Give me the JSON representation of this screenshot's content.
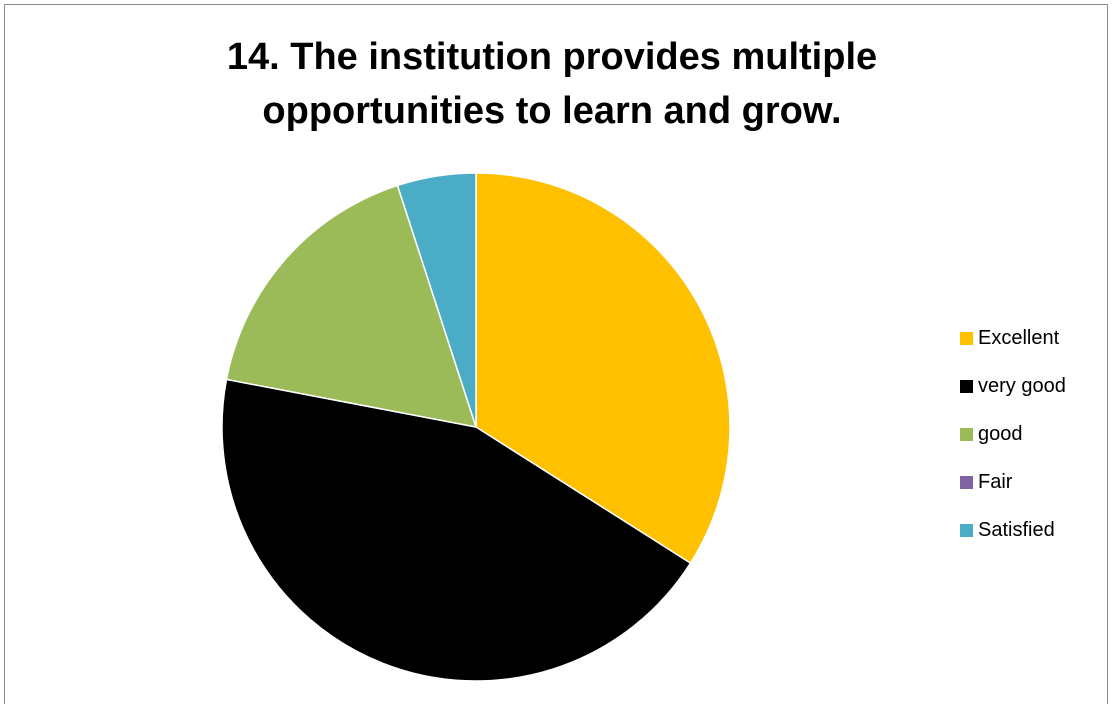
{
  "chart_data": {
    "type": "pie",
    "title_lines": [
      "14. The institution provides multiple",
      "opportunities to learn and grow."
    ],
    "start_angle_deg": 0,
    "direction": "clockwise",
    "slices": [
      {
        "label": "Excellent",
        "value": 34,
        "color": "#FFC000"
      },
      {
        "label": "very good",
        "value": 44,
        "color": "#000000"
      },
      {
        "label": "good",
        "value": 17,
        "color": "#9BBB59"
      },
      {
        "label": "Fair",
        "value": 0,
        "color": "#8064A2"
      },
      {
        "label": "Satisfied",
        "value": 5,
        "color": "#4BACC6"
      }
    ],
    "legend_position": "right"
  }
}
